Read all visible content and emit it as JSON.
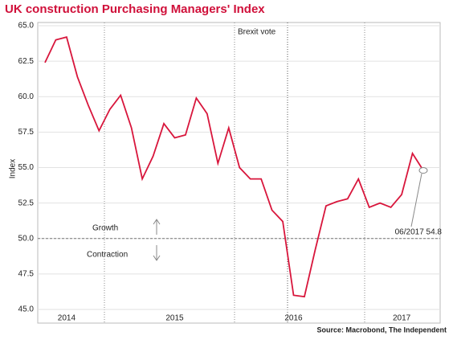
{
  "chart_data": {
    "type": "line",
    "title": "UK construction Purchasing Managers' Index",
    "y_label": "Index",
    "source": "Source: Macrobond, The Independent",
    "categories": [
      null,
      null,
      "2014",
      null,
      null,
      null,
      null,
      null,
      null,
      null,
      null,
      null,
      "2015",
      null,
      null,
      null,
      null,
      null,
      null,
      null,
      null,
      null,
      null,
      "2016",
      null,
      null,
      null,
      null,
      null,
      null,
      null,
      null,
      null,
      "2017",
      null,
      null
    ],
    "values": [
      62.4,
      64.0,
      64.2,
      61.4,
      59.4,
      57.6,
      59.1,
      60.1,
      57.8,
      54.2,
      55.8,
      58.1,
      57.1,
      57.3,
      59.9,
      58.8,
      55.3,
      57.8,
      55.0,
      54.2,
      54.2,
      52.0,
      51.2,
      46.0,
      45.9,
      49.2,
      52.3,
      52.6,
      52.8,
      54.2,
      52.2,
      52.5,
      52.2,
      53.1,
      56.0,
      54.8
    ],
    "color": "#d8163c",
    "ylim": [
      45,
      65
    ],
    "yticks": [
      {
        "value": 45,
        "label": "45.0"
      },
      {
        "value": 47.5,
        "label": "47.5"
      },
      {
        "value": 50,
        "label": "50.0"
      },
      {
        "value": 52.5,
        "label": "52.5"
      },
      {
        "value": 55,
        "label": "55.0"
      },
      {
        "value": 57.5,
        "label": "57.5"
      },
      {
        "value": 60,
        "label": "60.0"
      },
      {
        "value": 62.5,
        "label": "62.5"
      },
      {
        "value": 65,
        "label": "65.0"
      }
    ],
    "grid": true,
    "reference_line": 50,
    "annotations": {
      "brexit": "Brexit vote",
      "growth": "Growth",
      "contraction": "Contraction",
      "last_point": "06/2017 54.8"
    }
  }
}
